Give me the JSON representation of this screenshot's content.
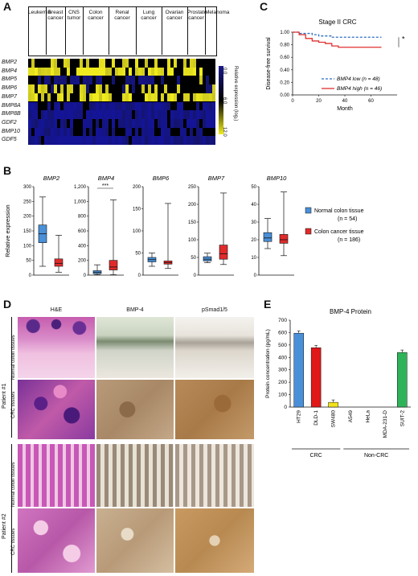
{
  "panels": {
    "a": "A",
    "b": "B",
    "c": "C",
    "d": "D",
    "e": "E"
  },
  "panelA": {
    "cancer_types": [
      "Leukemia",
      "Breast cancer",
      "CNS tumor",
      "Colon cancer",
      "Renal cancer",
      "Lung cancer",
      "Ovarian cancer",
      "Prostate cancer",
      "Melanoma"
    ],
    "genes": [
      "BMP2",
      "BMP4",
      "BMP5",
      "BMP6",
      "BMP7",
      "BMP8A",
      "BMP8B",
      "GDF2",
      "BMP10",
      "GDF5"
    ],
    "colorbar_label": "Relative expression (log₂)",
    "colorbar_ticks": [
      "0.0",
      "6.0",
      "12.0"
    ],
    "colors": {
      "low": "#1a1a8c",
      "mid": "#000000",
      "high": "#f2ef1a"
    }
  },
  "chart_data": [
    {
      "id": "C",
      "type": "line",
      "title": "Stage II CRC",
      "xlabel": "Month",
      "ylabel": "Disease-free survival",
      "xlim": [
        0,
        80
      ],
      "ylim": [
        0,
        1.0
      ],
      "xticks": [
        "0",
        "20",
        "40",
        "60"
      ],
      "yticks": [
        "0.00",
        "0.20",
        "0.40",
        "0.60",
        "0.80",
        "1.00"
      ],
      "annotation": "*",
      "series": [
        {
          "name": "BMP4 low (n = 48)",
          "color": "#2e6fc4",
          "dash": true,
          "x": [
            0,
            5,
            10,
            15,
            20,
            25,
            30,
            35,
            40,
            45,
            50,
            60,
            68
          ],
          "y": [
            1.0,
            0.98,
            0.98,
            0.96,
            0.94,
            0.94,
            0.92,
            0.92,
            0.92,
            0.92,
            0.92,
            0.92,
            0.92
          ]
        },
        {
          "name": "BMP4 high (n = 46)",
          "color": "#e03030",
          "dash": false,
          "x": [
            0,
            5,
            10,
            15,
            20,
            25,
            30,
            35,
            40,
            45,
            50,
            60,
            68
          ],
          "y": [
            1.0,
            0.96,
            0.9,
            0.86,
            0.84,
            0.82,
            0.78,
            0.76,
            0.76,
            0.76,
            0.76,
            0.76,
            0.76
          ]
        }
      ]
    },
    {
      "id": "B",
      "type": "box",
      "ylabel": "Relative expression",
      "legend": [
        "Normal colon tissue",
        "(n = 54)",
        "Colon cancer tissue",
        "(n = 186)"
      ],
      "colors": {
        "normal": "#4a90d9",
        "cancer": "#e02b2b"
      },
      "plots": [
        {
          "gene": "BMP2",
          "ylim": [
            0,
            300
          ],
          "yticks": [
            "0",
            "50",
            "100",
            "150",
            "200",
            "250",
            "300"
          ],
          "normal": {
            "min": 30,
            "q1": 110,
            "med": 140,
            "q3": 170,
            "max": 265
          },
          "cancer": {
            "min": 10,
            "q1": 30,
            "med": 40,
            "q3": 55,
            "max": 135
          },
          "sig": ""
        },
        {
          "gene": "BMP4",
          "ylim": [
            0,
            1200
          ],
          "yticks": [
            "0",
            "200",
            "400",
            "600",
            "800",
            "1,000",
            "1,200"
          ],
          "normal": {
            "min": 5,
            "q1": 20,
            "med": 40,
            "q3": 60,
            "max": 140
          },
          "cancer": {
            "min": 5,
            "q1": 70,
            "med": 110,
            "q3": 200,
            "max": 1020
          },
          "sig": "***"
        },
        {
          "gene": "BMP6",
          "ylim": [
            0,
            200
          ],
          "yticks": [
            "0",
            "50",
            "100",
            "150",
            "200"
          ],
          "normal": {
            "min": 20,
            "q1": 30,
            "med": 35,
            "q3": 40,
            "max": 50
          },
          "cancer": {
            "min": 15,
            "q1": 25,
            "med": 28,
            "q3": 32,
            "max": 162
          },
          "sig": ""
        },
        {
          "gene": "BMP7",
          "ylim": [
            0,
            250
          ],
          "yticks": [
            "0",
            "50",
            "100",
            "150",
            "200",
            "250"
          ],
          "normal": {
            "min": 35,
            "q1": 40,
            "med": 45,
            "q3": 52,
            "max": 62
          },
          "cancer": {
            "min": 30,
            "q1": 45,
            "med": 60,
            "q3": 85,
            "max": 232
          },
          "sig": ""
        },
        {
          "gene": "BMP10",
          "ylim": [
            0,
            50
          ],
          "yticks": [
            "0",
            "10",
            "20",
            "30",
            "40",
            "50"
          ],
          "normal": {
            "min": 15,
            "q1": 19,
            "med": 21,
            "q3": 24,
            "max": 32
          },
          "cancer": {
            "min": 11,
            "q1": 18,
            "med": 20,
            "q3": 23,
            "max": 47
          },
          "sig": ""
        }
      ]
    },
    {
      "id": "E",
      "type": "bar",
      "title": "BMP-4 Protein",
      "ylabel": "Protein concentration (pg/mL)",
      "ylim": [
        0,
        700
      ],
      "yticks": [
        "0",
        "100",
        "200",
        "300",
        "400",
        "500",
        "600",
        "700"
      ],
      "categories": [
        "HT29",
        "DLD-1",
        "SW480",
        "A549",
        "HeLa",
        "MDA-231-D",
        "SUIT-2"
      ],
      "values": [
        595,
        478,
        38,
        0,
        0,
        0,
        440
      ],
      "colors": [
        "#4a90d9",
        "#e01818",
        "#f2e21a",
        "#888888",
        "#888888",
        "#888888",
        "#2fb35a"
      ],
      "groups": [
        {
          "label": "CRC",
          "span": [
            0,
            2
          ]
        },
        {
          "label": "Non-CRC",
          "span": [
            3,
            6
          ]
        }
      ]
    }
  ],
  "panelD": {
    "columns": [
      "H&E",
      "BMP-4",
      "pSmad1/5"
    ],
    "patients": [
      "Patient #1",
      "Patient #2"
    ],
    "row_labels": [
      "Normal colon tissues",
      "CRC tissues"
    ]
  }
}
